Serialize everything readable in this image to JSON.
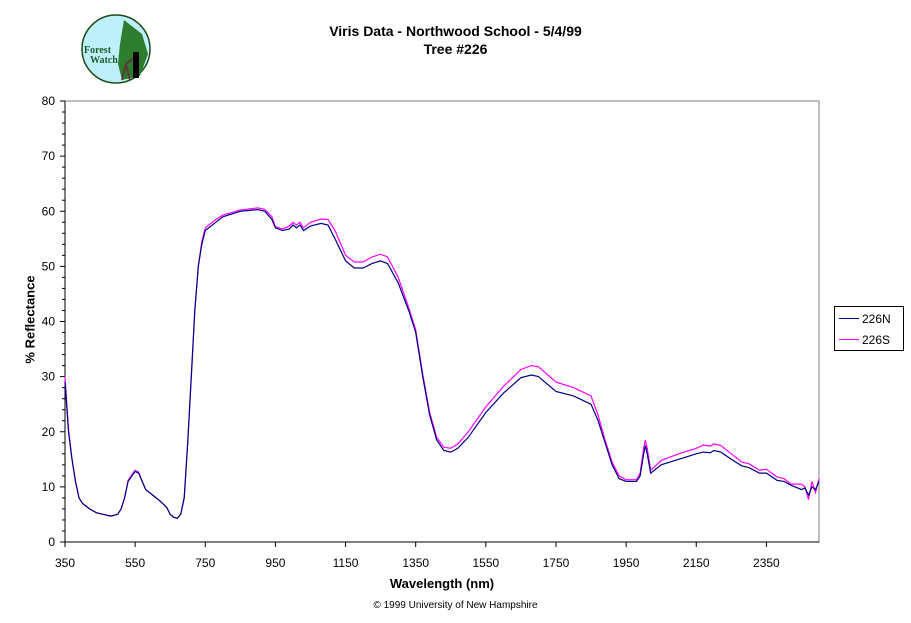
{
  "chart_data": {
    "type": "line",
    "title": "Viris Data - Northwood School - 5/4/99",
    "subtitle": "Tree #226",
    "xlabel": "Wavelength (nm)",
    "ylabel": "% Reflectance",
    "xlim": [
      350,
      2500
    ],
    "ylim": [
      0,
      80
    ],
    "xticks": [
      350,
      550,
      750,
      950,
      1150,
      1350,
      1550,
      1750,
      1950,
      2150,
      2350
    ],
    "yticks": [
      0,
      10,
      20,
      30,
      40,
      50,
      60,
      70,
      80
    ],
    "grid": false,
    "legend_position": "right",
    "x": [
      350,
      360,
      370,
      380,
      390,
      400,
      420,
      440,
      460,
      480,
      500,
      510,
      520,
      530,
      550,
      560,
      570,
      580,
      600,
      620,
      640,
      650,
      660,
      670,
      680,
      690,
      700,
      710,
      720,
      730,
      740,
      750,
      780,
      800,
      850,
      900,
      920,
      940,
      950,
      970,
      990,
      1000,
      1010,
      1020,
      1030,
      1050,
      1080,
      1100,
      1120,
      1150,
      1175,
      1200,
      1225,
      1250,
      1270,
      1300,
      1330,
      1350,
      1370,
      1390,
      1410,
      1430,
      1450,
      1470,
      1500,
      1550,
      1600,
      1650,
      1680,
      1700,
      1750,
      1800,
      1850,
      1870,
      1890,
      1910,
      1930,
      1950,
      1980,
      1990,
      2000,
      2005,
      2010,
      2020,
      2050,
      2100,
      2150,
      2170,
      2190,
      2200,
      2220,
      2250,
      2280,
      2300,
      2330,
      2350,
      2380,
      2400,
      2420,
      2450,
      2460,
      2470,
      2480,
      2490,
      2500
    ],
    "series": [
      {
        "name": "226N",
        "color": "#000080",
        "values": [
          29,
          20,
          15,
          11,
          8,
          7,
          6,
          5.3,
          5,
          4.7,
          5,
          6,
          8,
          11,
          12.8,
          12.5,
          11,
          9.5,
          8.5,
          7.5,
          6.3,
          5,
          4.5,
          4.3,
          5,
          8,
          18,
          30,
          42,
          50,
          54,
          56.5,
          58,
          59,
          60,
          60.3,
          60,
          58.5,
          57,
          56.5,
          56.8,
          57.5,
          57,
          57.5,
          56.5,
          57.3,
          57.8,
          57.5,
          55,
          51,
          49.7,
          49.7,
          50.5,
          51,
          50.5,
          47,
          42,
          38,
          30,
          23,
          18.5,
          16.6,
          16.3,
          17,
          19,
          23.5,
          27,
          29.8,
          30.3,
          30,
          27.3,
          26.5,
          25,
          22,
          18,
          14,
          11.5,
          11,
          11,
          12,
          16,
          17.5,
          16,
          12.5,
          14,
          15,
          16,
          16.3,
          16.2,
          16.6,
          16.3,
          15,
          13.8,
          13.5,
          12.5,
          12.5,
          11.2,
          11,
          10.3,
          9.5,
          9.8,
          8.5,
          10,
          9.5,
          11
        ]
      },
      {
        "name": "226S",
        "color": "#ff00ff",
        "values": [
          30,
          20.5,
          15,
          11,
          8,
          7,
          6,
          5.3,
          5,
          4.7,
          5,
          6,
          8,
          11.2,
          13,
          12.7,
          11,
          9.5,
          8.5,
          7.5,
          6.3,
          5,
          4.5,
          4.3,
          5,
          8,
          18,
          30,
          42,
          50,
          54.5,
          57,
          58.5,
          59.3,
          60.2,
          60.6,
          60.3,
          59,
          57.2,
          56.8,
          57.3,
          58,
          57.5,
          58,
          57,
          58,
          58.6,
          58.5,
          56.5,
          52,
          50.8,
          50.8,
          51.7,
          52.2,
          51.7,
          48,
          42.5,
          38.5,
          30.5,
          23.5,
          19,
          17.2,
          17,
          17.8,
          20,
          24.5,
          28.2,
          31.3,
          32,
          31.8,
          29,
          28,
          26.5,
          23,
          18.5,
          14.5,
          12,
          11.3,
          11.3,
          12.5,
          17,
          18.5,
          17,
          13,
          14.8,
          16,
          17,
          17.6,
          17.4,
          17.8,
          17.5,
          16,
          14.5,
          14.2,
          13,
          13.2,
          11.8,
          11.5,
          10.5,
          10.5,
          10,
          7.7,
          11,
          9,
          11.5
        ]
      }
    ]
  },
  "logo": {
    "line1": "Forest",
    "line2": "Watch"
  },
  "copyright": "© 1999 University of New Hampshire"
}
